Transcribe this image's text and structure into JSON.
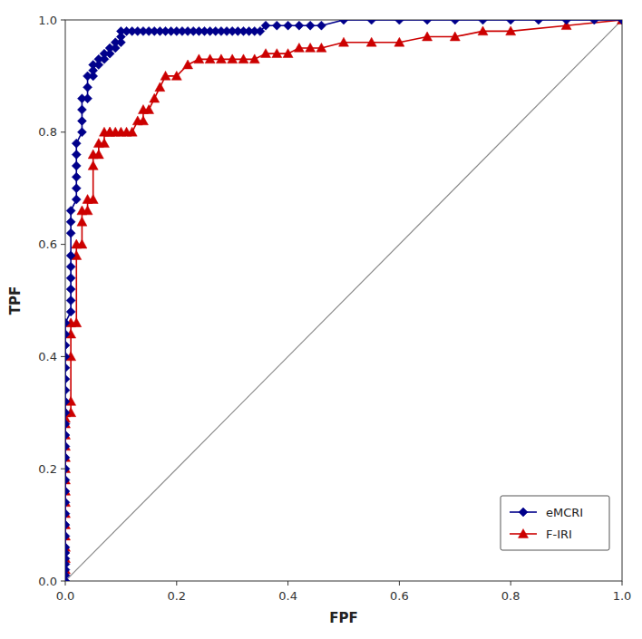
{
  "chart_data": {
    "type": "line",
    "xlabel": "FPF",
    "ylabel": "TPF",
    "xlim": [
      0,
      1
    ],
    "ylim": [
      0,
      1
    ],
    "xticks": [
      {
        "value": 0,
        "label": "0.0"
      },
      0.2,
      0.4,
      0.6,
      0.8,
      {
        "value": 1,
        "label": "1.0"
      }
    ],
    "yticks": [
      {
        "value": 0,
        "label": "0.0"
      },
      0.2,
      0.4,
      0.6,
      0.8,
      {
        "value": 1,
        "label": "1.0"
      }
    ],
    "grid": false,
    "legend": "lower right",
    "series": [
      {
        "name": "eMCRI",
        "color": "#00008B",
        "marker": "diamond",
        "x": [
          0.0,
          0.0,
          0.0,
          0.0,
          0.0,
          0.0,
          0.0,
          0.0,
          0.0,
          0.0,
          0.0,
          0.0,
          0.0,
          0.0,
          0.0,
          0.0,
          0.0,
          0.0,
          0.0,
          0.0,
          0.0,
          0.0,
          0.0,
          0.0,
          0.0,
          0.0,
          0.0,
          0.01,
          0.01,
          0.01,
          0.01,
          0.01,
          0.01,
          0.01,
          0.01,
          0.01,
          0.02,
          0.02,
          0.02,
          0.02,
          0.02,
          0.02,
          0.03,
          0.03,
          0.03,
          0.03,
          0.04,
          0.04,
          0.04,
          0.05,
          0.05,
          0.05,
          0.06,
          0.06,
          0.07,
          0.07,
          0.08,
          0.08,
          0.09,
          0.09,
          0.1,
          0.1,
          0.1,
          0.11,
          0.12,
          0.13,
          0.14,
          0.15,
          0.16,
          0.17,
          0.18,
          0.19,
          0.2,
          0.21,
          0.22,
          0.23,
          0.24,
          0.25,
          0.26,
          0.27,
          0.28,
          0.29,
          0.3,
          0.31,
          0.32,
          0.33,
          0.34,
          0.35,
          0.36,
          0.38,
          0.4,
          0.42,
          0.44,
          0.46,
          0.5,
          0.55,
          0.6,
          0.65,
          0.7,
          0.75,
          0.8,
          0.85,
          0.9,
          0.95,
          1.0
        ],
        "values": [
          0.0,
          0.01,
          0.02,
          0.03,
          0.04,
          0.05,
          0.06,
          0.08,
          0.1,
          0.12,
          0.14,
          0.16,
          0.18,
          0.2,
          0.22,
          0.24,
          0.26,
          0.28,
          0.3,
          0.32,
          0.34,
          0.36,
          0.38,
          0.4,
          0.42,
          0.44,
          0.46,
          0.48,
          0.5,
          0.52,
          0.54,
          0.56,
          0.58,
          0.62,
          0.64,
          0.66,
          0.68,
          0.7,
          0.72,
          0.74,
          0.76,
          0.78,
          0.8,
          0.82,
          0.84,
          0.86,
          0.86,
          0.88,
          0.9,
          0.9,
          0.91,
          0.92,
          0.92,
          0.93,
          0.93,
          0.94,
          0.94,
          0.95,
          0.95,
          0.96,
          0.96,
          0.97,
          0.98,
          0.98,
          0.98,
          0.98,
          0.98,
          0.98,
          0.98,
          0.98,
          0.98,
          0.98,
          0.98,
          0.98,
          0.98,
          0.98,
          0.98,
          0.98,
          0.98,
          0.98,
          0.98,
          0.98,
          0.98,
          0.98,
          0.98,
          0.98,
          0.98,
          0.98,
          0.99,
          0.99,
          0.99,
          0.99,
          0.99,
          0.99,
          1.0,
          1.0,
          1.0,
          1.0,
          1.0,
          1.0,
          1.0,
          1.0,
          1.0,
          1.0,
          1.0
        ]
      },
      {
        "name": "F-IRI",
        "color": "#CC0000",
        "marker": "triangle",
        "x": [
          0.0,
          0.0,
          0.0,
          0.0,
          0.0,
          0.0,
          0.0,
          0.0,
          0.0,
          0.0,
          0.0,
          0.0,
          0.0,
          0.0,
          0.0,
          0.0,
          0.0,
          0.0,
          0.01,
          0.01,
          0.01,
          0.01,
          0.01,
          0.02,
          0.02,
          0.02,
          0.03,
          0.03,
          0.03,
          0.04,
          0.04,
          0.05,
          0.05,
          0.05,
          0.06,
          0.06,
          0.07,
          0.07,
          0.08,
          0.08,
          0.09,
          0.1,
          0.11,
          0.12,
          0.13,
          0.14,
          0.14,
          0.15,
          0.16,
          0.17,
          0.18,
          0.2,
          0.22,
          0.24,
          0.26,
          0.28,
          0.3,
          0.32,
          0.34,
          0.36,
          0.38,
          0.4,
          0.42,
          0.44,
          0.46,
          0.5,
          0.55,
          0.6,
          0.65,
          0.7,
          0.75,
          0.8,
          0.9,
          1.0
        ],
        "values": [
          0.0,
          0.02,
          0.04,
          0.06,
          0.08,
          0.1,
          0.12,
          0.14,
          0.16,
          0.18,
          0.2,
          0.22,
          0.24,
          0.26,
          0.28,
          0.29,
          0.3,
          0.3,
          0.3,
          0.32,
          0.4,
          0.44,
          0.46,
          0.46,
          0.58,
          0.6,
          0.6,
          0.64,
          0.66,
          0.66,
          0.68,
          0.68,
          0.74,
          0.76,
          0.76,
          0.78,
          0.78,
          0.8,
          0.8,
          0.8,
          0.8,
          0.8,
          0.8,
          0.8,
          0.82,
          0.82,
          0.84,
          0.84,
          0.86,
          0.88,
          0.9,
          0.9,
          0.92,
          0.93,
          0.93,
          0.93,
          0.93,
          0.93,
          0.93,
          0.94,
          0.94,
          0.94,
          0.95,
          0.95,
          0.95,
          0.96,
          0.96,
          0.96,
          0.97,
          0.97,
          0.98,
          0.98,
          0.99,
          1.0
        ]
      }
    ]
  }
}
